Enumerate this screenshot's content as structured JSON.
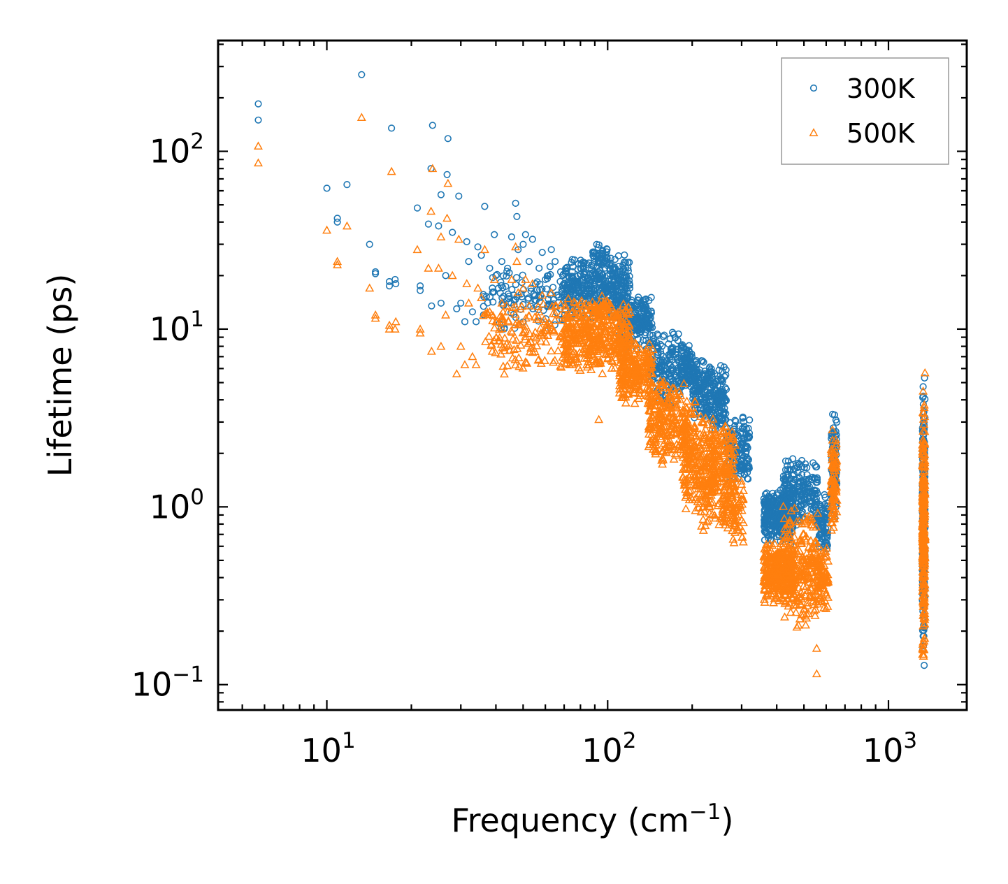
{
  "chart_data": {
    "type": "scatter",
    "title": "",
    "xlabel": "Frequency (cm",
    "xlabel_sup": "−1",
    "xlabel_close": ")",
    "ylabel": "Lifetime (ps)",
    "xscale": "log",
    "yscale": "log",
    "xlim": [
      4.1,
      1900
    ],
    "ylim": [
      0.072,
      420
    ],
    "x_ticks": [
      {
        "base": "10",
        "exp": "1"
      },
      {
        "base": "10",
        "exp": "2"
      },
      {
        "base": "10",
        "exp": "3"
      }
    ],
    "y_ticks": [
      {
        "base": "10",
        "exp": "−1"
      },
      {
        "base": "10",
        "exp": "0"
      },
      {
        "base": "10",
        "exp": "1"
      },
      {
        "base": "10",
        "exp": "2"
      }
    ],
    "x_tick_values": [
      10,
      100,
      1000
    ],
    "y_tick_values": [
      0.1,
      1,
      10,
      100
    ],
    "legend_position": "top-right",
    "series": [
      {
        "name": "300K",
        "marker": "circle",
        "color": "#1f77b4",
        "points": [
          [
            5.7,
            185
          ],
          [
            5.7,
            150
          ],
          [
            10.0,
            62
          ],
          [
            10.9,
            42
          ],
          [
            10.9,
            40
          ],
          [
            11.8,
            65
          ],
          [
            13.3,
            270
          ],
          [
            14.2,
            30
          ],
          [
            14.9,
            21
          ],
          [
            14.9,
            20.5
          ],
          [
            16.7,
            18.5
          ],
          [
            16.7,
            17.5
          ],
          [
            17.0,
            135
          ],
          [
            17.6,
            18
          ],
          [
            17.5,
            19
          ],
          [
            21.0,
            48
          ],
          [
            21.5,
            17.5
          ],
          [
            21.5,
            16.5
          ],
          [
            23.0,
            39
          ],
          [
            23.5,
            80
          ],
          [
            23.8,
            140
          ],
          [
            23.6,
            13.5
          ],
          [
            25.0,
            38
          ],
          [
            25.5,
            57
          ],
          [
            25.5,
            14
          ],
          [
            26.5,
            20
          ],
          [
            26.8,
            74
          ],
          [
            27.0,
            118
          ],
          [
            28.0,
            35
          ],
          [
            29.5,
            56
          ],
          [
            29.0,
            13
          ],
          [
            30.0,
            14
          ],
          [
            31.0,
            11
          ],
          [
            31.5,
            31
          ],
          [
            32.0,
            24
          ],
          [
            33.0,
            12.5
          ],
          [
            34.0,
            11
          ],
          [
            34.5,
            29
          ],
          [
            35.5,
            26
          ],
          [
            36.5,
            49
          ],
          [
            38.0,
            22
          ],
          [
            39.5,
            34
          ],
          [
            40.0,
            20
          ],
          [
            42.0,
            24
          ],
          [
            44.0,
            22
          ],
          [
            45.5,
            33
          ],
          [
            47.0,
            51
          ],
          [
            47.5,
            43
          ],
          [
            48.0,
            28
          ],
          [
            50.0,
            30
          ],
          [
            51.0,
            34
          ],
          [
            52.5,
            24
          ],
          [
            54.0,
            32
          ],
          [
            57.0,
            22
          ],
          [
            58.5,
            27
          ],
          [
            60.0,
            19
          ],
          [
            63.0,
            28
          ],
          [
            65.0,
            24
          ],
          [
            68.0,
            21
          ]
        ],
        "clusters": [
          {
            "x": [
              36,
              70
            ],
            "y": [
              9,
              25
            ],
            "n": 120
          },
          {
            "x": [
              70,
              120
            ],
            "y": [
              11,
              27
            ],
            "n": 420
          },
          {
            "x": [
              88,
              100
            ],
            "y": [
              22,
              31
            ],
            "n": 40
          },
          {
            "x": [
              110,
              145
            ],
            "y": [
              7.5,
              16
            ],
            "n": 200
          },
          {
            "x": [
              140,
              185
            ],
            "y": [
              3.5,
              10
            ],
            "n": 180
          },
          {
            "x": [
              185,
              200
            ],
            "y": [
              4.5,
              8.5
            ],
            "n": 80
          },
          {
            "x": [
              200,
              235
            ],
            "y": [
              3.0,
              7.0
            ],
            "n": 160
          },
          {
            "x": [
              235,
              265
            ],
            "y": [
              2.5,
              6.5
            ],
            "n": 120
          },
          {
            "x": [
              265,
              320
            ],
            "y": [
              1.3,
              3.5
            ],
            "n": 140
          },
          {
            "x": [
              295,
              320
            ],
            "y": [
              1.5,
              2.0
            ],
            "n": 20
          },
          {
            "x": [
              360,
              460
            ],
            "y": [
              0.6,
              1.3
            ],
            "n": 320
          },
          {
            "x": [
              420,
              560
            ],
            "y": [
              0.75,
              1.9
            ],
            "n": 220
          },
          {
            "x": [
              560,
              610
            ],
            "y": [
              0.55,
              1.2
            ],
            "n": 80
          },
          {
            "x": [
              625,
              655
            ],
            "y": [
              0.8,
              3.8
            ],
            "n": 90
          },
          {
            "x": [
              1320,
              1350
            ],
            "y": [
              0.12,
              5.8
            ],
            "n": 260
          }
        ]
      },
      {
        "name": "500K",
        "marker": "triangle",
        "color": "#ff7f0e",
        "points": [
          [
            5.7,
            107
          ],
          [
            5.7,
            86
          ],
          [
            10.0,
            36
          ],
          [
            10.9,
            24
          ],
          [
            10.9,
            23
          ],
          [
            11.8,
            38
          ],
          [
            13.3,
            155
          ],
          [
            14.2,
            17
          ],
          [
            14.9,
            12
          ],
          [
            14.9,
            11.5
          ],
          [
            16.7,
            10.5
          ],
          [
            16.7,
            10
          ],
          [
            17.0,
            77
          ],
          [
            17.6,
            11
          ],
          [
            17.5,
            10
          ],
          [
            21.0,
            28
          ],
          [
            21.5,
            10
          ],
          [
            21.5,
            9.5
          ],
          [
            23.0,
            22
          ],
          [
            23.5,
            46
          ],
          [
            23.8,
            80
          ],
          [
            23.6,
            7.5
          ],
          [
            25.0,
            22
          ],
          [
            25.5,
            33
          ],
          [
            25.5,
            8
          ],
          [
            26.5,
            12
          ],
          [
            26.8,
            42
          ],
          [
            27.0,
            66
          ],
          [
            28.0,
            20
          ],
          [
            29.5,
            32
          ],
          [
            29.0,
            5.6
          ],
          [
            30.0,
            8
          ],
          [
            31.0,
            6.3
          ],
          [
            31.5,
            18
          ],
          [
            32.0,
            14
          ],
          [
            33.0,
            7
          ],
          [
            34.0,
            6.3
          ],
          [
            34.5,
            17
          ],
          [
            35.5,
            15
          ],
          [
            36.5,
            28
          ],
          [
            38.0,
            12.5
          ],
          [
            39.5,
            19
          ],
          [
            40.0,
            11
          ],
          [
            42.0,
            14
          ],
          [
            44.0,
            12.5
          ],
          [
            45.5,
            19
          ],
          [
            47.0,
            29
          ],
          [
            47.5,
            24
          ],
          [
            48.0,
            16
          ],
          [
            50.0,
            17
          ],
          [
            51.0,
            19
          ],
          [
            52.5,
            13.5
          ],
          [
            54.0,
            18
          ],
          [
            57.0,
            12.5
          ],
          [
            58.5,
            15.5
          ],
          [
            60.0,
            11
          ],
          [
            63.0,
            16
          ],
          [
            65.0,
            13.5
          ],
          [
            68.0,
            12
          ],
          [
            93.0,
            3.1
          ],
          [
            555,
            0.115
          ],
          [
            555,
            0.16
          ]
        ],
        "clusters": [
          {
            "x": [
              36,
              70
            ],
            "y": [
              5.2,
              15
            ],
            "n": 140
          },
          {
            "x": [
              70,
              120
            ],
            "y": [
              5.5,
              15
            ],
            "n": 420
          },
          {
            "x": [
              88,
              100
            ],
            "y": [
              10,
              16
            ],
            "n": 40
          },
          {
            "x": [
              110,
              145
            ],
            "y": [
              3.5,
              9
            ],
            "n": 220
          },
          {
            "x": [
              140,
              190
            ],
            "y": [
              1.6,
              5.5
            ],
            "n": 240
          },
          {
            "x": [
              185,
              205
            ],
            "y": [
              0.9,
              4.5
            ],
            "n": 120
          },
          {
            "x": [
              205,
              240
            ],
            "y": [
              0.7,
              3.8
            ],
            "n": 180
          },
          {
            "x": [
              235,
              285
            ],
            "y": [
              0.75,
              3.5
            ],
            "n": 180
          },
          {
            "x": [
              260,
              305
            ],
            "y": [
              0.6,
              1.6
            ],
            "n": 80
          },
          {
            "x": [
              360,
              460
            ],
            "y": [
              0.28,
              0.65
            ],
            "n": 320
          },
          {
            "x": [
              420,
              560
            ],
            "y": [
              0.2,
              1.1
            ],
            "n": 240
          },
          {
            "x": [
              560,
              610
            ],
            "y": [
              0.25,
              0.6
            ],
            "n": 80
          },
          {
            "x": [
              625,
              655
            ],
            "y": [
              0.65,
              2.8
            ],
            "n": 90
          },
          {
            "x": [
              1320,
              1350
            ],
            "y": [
              0.105,
              5.8
            ],
            "n": 260
          }
        ]
      }
    ]
  }
}
